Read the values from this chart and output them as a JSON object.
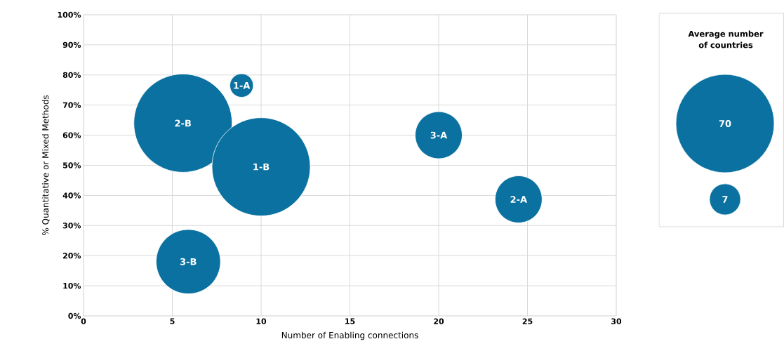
{
  "chart_data": {
    "type": "bubble",
    "xlabel": "Number of Enabling connections",
    "ylabel": "% Quantitative or Mixed Methods",
    "legend_title": "Average number of countries",
    "xlim": [
      0,
      30
    ],
    "xticks": [
      0,
      5,
      10,
      15,
      20,
      25,
      30
    ],
    "ylim": [
      0,
      100
    ],
    "yticks": [
      {
        "value": 0,
        "label": "0%"
      },
      {
        "value": 10,
        "label": "10%"
      },
      {
        "value": 20,
        "label": "20%"
      },
      {
        "value": 30,
        "label": "30%"
      },
      {
        "value": 40,
        "label": "40%"
      },
      {
        "value": 50,
        "label": "50%"
      },
      {
        "value": 60,
        "label": "60%"
      },
      {
        "value": 70,
        "label": "70%"
      },
      {
        "value": 80,
        "label": "80%"
      },
      {
        "value": 90,
        "label": "90%"
      },
      {
        "value": 100,
        "label": "100%"
      }
    ],
    "grid": true,
    "size_legend": [
      70,
      7
    ],
    "series": [
      {
        "name": "1-A",
        "color": "#0b71a0",
        "x": [
          8.9
        ],
        "values": [
          76.5
        ],
        "sizes": [
          4
        ]
      },
      {
        "name": "2-B",
        "color": "#0b71a0",
        "x": [
          5.6
        ],
        "values": [
          64
        ],
        "sizes": [
          70
        ]
      },
      {
        "name": "1-B",
        "color": "#0b71a0",
        "x": [
          10.0
        ],
        "values": [
          49.5
        ],
        "sizes": [
          70
        ]
      },
      {
        "name": "3-A",
        "color": "#0b71a0",
        "x": [
          20.0
        ],
        "values": [
          60
        ],
        "sizes": [
          16
        ]
      },
      {
        "name": "2-A",
        "color": "#0b71a0",
        "x": [
          24.5
        ],
        "values": [
          38.7
        ],
        "sizes": [
          16
        ]
      },
      {
        "name": "3-B",
        "color": "#0b71a0",
        "x": [
          5.9
        ],
        "values": [
          18
        ],
        "sizes": [
          30
        ]
      }
    ]
  }
}
